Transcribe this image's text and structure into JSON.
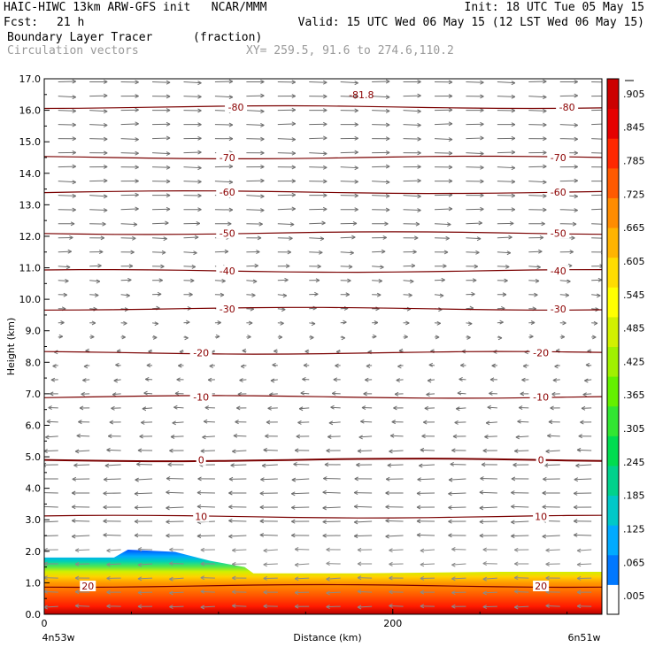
{
  "header": {
    "line1_left": "HAIC-HIWC 13km ARW-GFS init   NCAR/MMM",
    "line1_right": "Init: 18 UTC Tue 05 May 15",
    "fcst_label": "Fcst:",
    "fcst_value": "21 h",
    "valid": "Valid: 15 UTC Wed 06 May 15 (12 LST Wed 06 May 15)",
    "field_name": "Boundary Layer Tracer",
    "field_units": "(fraction)",
    "vector_name": "Circulation vectors",
    "xy_range": "XY= 259.5, 91.6 to 274.6,110.2"
  },
  "chart_data": {
    "type": "heatmap",
    "title": "Boundary Layer Tracer",
    "units": "(fraction)",
    "ylabel": "Height (km)",
    "xlabel": "Distance (km)",
    "ylim": [
      0,
      17
    ],
    "xlim": [
      0,
      320
    ],
    "y_ticks": [
      "0.0",
      "1.0",
      "2.0",
      "3.0",
      "4.0",
      "5.0",
      "6.0",
      "7.0",
      "8.0",
      "9.0",
      "10.0",
      "11.0",
      "12.0",
      "13.0",
      "14.0",
      "15.0",
      "16.0",
      "17.0"
    ],
    "x_ticks": [
      {
        "value": 0,
        "label": "0"
      },
      {
        "value": 200,
        "label": "200"
      }
    ],
    "x_endpoints": {
      "left": "4n53w",
      "right": "6n51w"
    },
    "colorbar": {
      "labels": [
        ".005",
        ".065",
        ".125",
        ".185",
        ".245",
        ".305",
        ".365",
        ".425",
        ".485",
        ".545",
        ".605",
        ".665",
        ".725",
        ".785",
        ".845",
        ".905"
      ],
      "colors": [
        "#ffffff",
        "#0078ff",
        "#00aaff",
        "#00c8c8",
        "#00d28c",
        "#00dc50",
        "#32e632",
        "#64f000",
        "#a0f000",
        "#d2f000",
        "#ffff00",
        "#ffdc00",
        "#ffb400",
        "#ff8c00",
        "#ff5a00",
        "#ff2800",
        "#e60000",
        "#cc0000"
      ]
    },
    "tracer_top_km": [
      {
        "x": 0,
        "h": 1.8
      },
      {
        "x": 40,
        "h": 1.8
      },
      {
        "x": 48,
        "h": 2.05
      },
      {
        "x": 75,
        "h": 1.98
      },
      {
        "x": 95,
        "h": 1.7
      },
      {
        "x": 115,
        "h": 1.5
      },
      {
        "x": 120,
        "h": 1.3
      },
      {
        "x": 180,
        "h": 1.3
      },
      {
        "x": 260,
        "h": 1.35
      },
      {
        "x": 320,
        "h": 1.35
      }
    ],
    "temperature_contours_c": [
      {
        "level": 20,
        "label": "20",
        "y_km": 0.9,
        "label_x": [
          25,
          285
        ]
      },
      {
        "level": 10,
        "label": "10",
        "y_km": 3.1,
        "label_x": [
          90,
          285
        ]
      },
      {
        "level": 0,
        "label": "0",
        "y_km": 4.9,
        "label_x": [
          90,
          285
        ]
      },
      {
        "level": -10,
        "label": "-10",
        "y_km": 6.9,
        "label_x": [
          90,
          285
        ]
      },
      {
        "level": -20,
        "label": "-20",
        "y_km": 8.3,
        "label_x": [
          90,
          285
        ]
      },
      {
        "level": -30,
        "label": "-30",
        "y_km": 9.7,
        "label_x": [
          105,
          295
        ]
      },
      {
        "level": -40,
        "label": "-40",
        "y_km": 10.9,
        "label_x": [
          105,
          295
        ]
      },
      {
        "level": -50,
        "label": "-50",
        "y_km": 12.1,
        "label_x": [
          105,
          295
        ]
      },
      {
        "level": -60,
        "label": "-60",
        "y_km": 13.4,
        "label_x": [
          105,
          295
        ]
      },
      {
        "level": -70,
        "label": "-70",
        "y_km": 14.5,
        "label_x": [
          105,
          295
        ]
      },
      {
        "level": -80,
        "label": "-80",
        "y_km": 16.1,
        "label_x": [
          110,
          300
        ]
      }
    ],
    "extra_labels": [
      {
        "text": "-81.8",
        "x": 182,
        "y_km": 16.5
      }
    ],
    "vectors": {
      "low_direction": "westward",
      "high_direction": "eastward",
      "reversal_km": 8.5
    }
  }
}
